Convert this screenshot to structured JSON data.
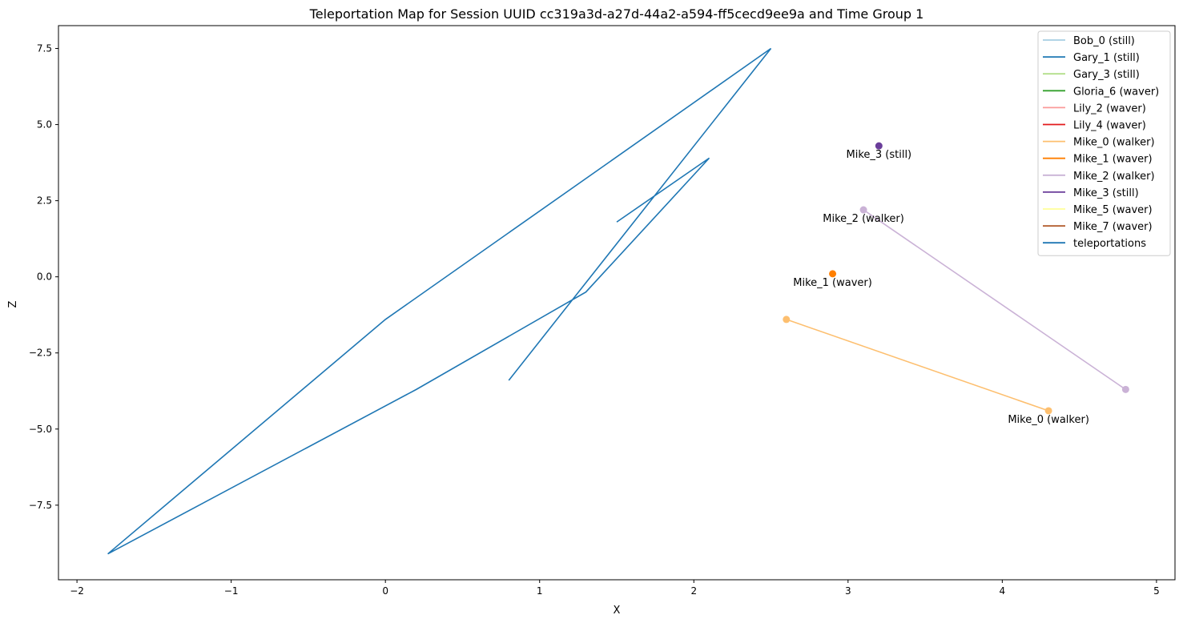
{
  "chart_data": {
    "type": "line",
    "title": "Teleportation Map for Session UUID cc319a3d-a27d-44a2-a594-ff5cecd9ee9a and Time Group 1",
    "xlabel": "X",
    "ylabel": "Z",
    "xlim": [
      -2.12,
      5.12
    ],
    "ylim": [
      -9.95,
      8.25
    ],
    "x_ticks": [
      -2,
      -1,
      0,
      1,
      2,
      3,
      4,
      5
    ],
    "y_ticks": [
      -7.5,
      -5.0,
      -2.5,
      0.0,
      2.5,
      5.0,
      7.5
    ],
    "x_tick_labels": [
      "−2",
      "−1",
      "0",
      "1",
      "2",
      "3",
      "4",
      "5"
    ],
    "y_tick_labels": [
      "−7.5",
      "−5.0",
      "−2.5",
      "0.0",
      "2.5",
      "5.0",
      "7.5"
    ],
    "grid": false,
    "legend_placement": "top-right",
    "legend": [
      {
        "label": "Bob_0 (still)",
        "color": "#a6cee3"
      },
      {
        "label": "Gary_1 (still)",
        "color": "#1f78b4"
      },
      {
        "label": "Gary_3 (still)",
        "color": "#b2df8a"
      },
      {
        "label": "Gloria_6 (waver)",
        "color": "#33a02c"
      },
      {
        "label": "Lily_2 (waver)",
        "color": "#fb9a99"
      },
      {
        "label": "Lily_4 (waver)",
        "color": "#e31a1c"
      },
      {
        "label": "Mike_0 (walker)",
        "color": "#fdbf6f"
      },
      {
        "label": "Mike_1 (waver)",
        "color": "#ff7f00"
      },
      {
        "label": "Mike_2 (walker)",
        "color": "#cab2d6"
      },
      {
        "label": "Mike_3 (still)",
        "color": "#6a3d9a"
      },
      {
        "label": "Mike_5 (waver)",
        "color": "#ffff99"
      },
      {
        "label": "Mike_7 (waver)",
        "color": "#b15928"
      },
      {
        "label": "teleportations",
        "color": "#1f77b4"
      }
    ],
    "teleportations": {
      "color": "#1f77b4",
      "points": [
        [
          1.5,
          1.8
        ],
        [
          2.1,
          3.9
        ],
        [
          1.3,
          -0.5
        ],
        [
          0.2,
          -3.7
        ],
        [
          -1.8,
          -9.1
        ],
        [
          0.0,
          -1.4
        ],
        [
          2.5,
          7.5
        ],
        [
          0.8,
          -3.4
        ]
      ]
    },
    "series": [
      {
        "name": "Mike_0 (walker)",
        "color": "#fdbf6f",
        "points": [
          [
            2.6,
            -1.4
          ],
          [
            4.3,
            -4.4
          ]
        ],
        "label": "Mike_0 (walker)",
        "label_at": [
          4.3,
          -4.4
        ]
      },
      {
        "name": "Mike_1 (waver)",
        "color": "#ff7f00",
        "points": [
          [
            2.9,
            0.1
          ]
        ],
        "label": "Mike_1 (waver)",
        "label_at": [
          2.9,
          0.1
        ]
      },
      {
        "name": "Mike_2 (walker)",
        "color": "#cab2d6",
        "points": [
          [
            4.8,
            -3.7
          ],
          [
            3.1,
            2.2
          ]
        ],
        "label": "Mike_2 (walker)",
        "label_at": [
          3.1,
          2.2
        ]
      },
      {
        "name": "Mike_3 (still)",
        "color": "#6a3d9a",
        "points": [
          [
            3.2,
            4.3
          ]
        ],
        "label": "Mike_3 (still)",
        "label_at": [
          3.2,
          4.3
        ]
      }
    ]
  }
}
